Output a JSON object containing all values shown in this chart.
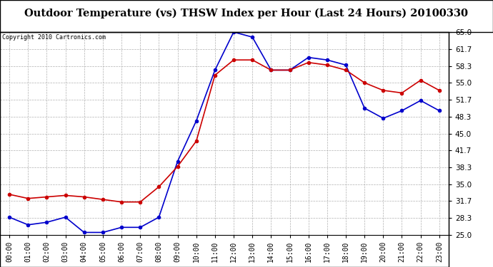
{
  "title": "Outdoor Temperature (vs) THSW Index per Hour (Last 24 Hours) 20100330",
  "copyright_text": "Copyright 2010 Cartronics.com",
  "hours": [
    "00:00",
    "01:00",
    "02:00",
    "03:00",
    "04:00",
    "05:00",
    "06:00",
    "07:00",
    "08:00",
    "09:00",
    "10:00",
    "11:00",
    "12:00",
    "13:00",
    "14:00",
    "15:00",
    "16:00",
    "17:00",
    "18:00",
    "19:00",
    "20:00",
    "21:00",
    "22:00",
    "23:00"
  ],
  "temp": [
    33.0,
    32.2,
    32.5,
    32.8,
    32.5,
    32.0,
    31.5,
    31.5,
    34.5,
    38.5,
    43.5,
    56.5,
    59.5,
    59.5,
    57.5,
    57.5,
    59.0,
    58.5,
    57.5,
    55.0,
    53.5,
    53.0,
    55.5,
    53.5
  ],
  "thsw": [
    28.5,
    27.0,
    27.5,
    28.5,
    25.5,
    25.5,
    26.5,
    26.5,
    28.5,
    39.5,
    47.5,
    57.5,
    65.0,
    64.0,
    57.5,
    57.5,
    60.0,
    59.5,
    58.5,
    50.0,
    48.0,
    49.5,
    51.5,
    49.5
  ],
  "ylim": [
    25.0,
    65.0
  ],
  "yticks": [
    25.0,
    28.3,
    31.7,
    35.0,
    38.3,
    41.7,
    45.0,
    48.3,
    51.7,
    55.0,
    58.3,
    61.7,
    65.0
  ],
  "temp_color": "#cc0000",
  "thsw_color": "#0000cc",
  "grid_color": "#b0b0b0",
  "bg_color": "#ffffff",
  "plot_bg": "#ffffff"
}
